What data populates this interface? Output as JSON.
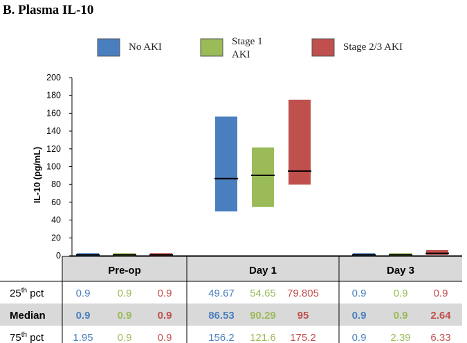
{
  "figure_title": "B. Plasma IL-10",
  "colors": {
    "No AKI": "#4a7fbf",
    "Stage 1 AKI": "#9bbb59",
    "Stage 2/3 AKI": "#c0504d",
    "table_header_bg": "#d9d9d9",
    "median_row_bg": "#d9d9d9"
  },
  "legend": [
    {
      "label_lines": [
        "No AKI"
      ],
      "color_key": "No AKI"
    },
    {
      "label_lines": [
        "Stage 1",
        "AKI"
      ],
      "color_key": "Stage 1 AKI"
    },
    {
      "label_lines": [
        "Stage 2/3 AKI"
      ],
      "color_key": "Stage 2/3 AKI"
    }
  ],
  "chart_data": {
    "type": "bar",
    "subtype": "floating-bar (25th–75th percentile with median line)",
    "ylabel": "IL-10 (pg/mL)",
    "ylim": [
      0,
      200
    ],
    "yticks": [
      0,
      20,
      40,
      60,
      80,
      100,
      120,
      140,
      160,
      180,
      200
    ],
    "categories": [
      "Pre-op",
      "Day 1",
      "Day 3"
    ],
    "series": [
      {
        "name": "No AKI",
        "p25": [
          0.9,
          49.67,
          0.9
        ],
        "median": [
          0.9,
          86.53,
          0.9
        ],
        "p75": [
          1.95,
          156.2,
          0.9
        ]
      },
      {
        "name": "Stage 1 AKI",
        "p25": [
          0.9,
          54.65,
          0.9
        ],
        "median": [
          0.9,
          90.29,
          0.9
        ],
        "p75": [
          0.9,
          121.6,
          2.39
        ]
      },
      {
        "name": "Stage 2/3 AKI",
        "p25": [
          0.9,
          79.805,
          0.9
        ],
        "median": [
          0.9,
          95,
          2.64
        ],
        "p75": [
          0.9,
          175.2,
          6.33
        ]
      }
    ],
    "grid": false,
    "legend_position": "top"
  },
  "table": {
    "rows": [
      {
        "label": "25th pct",
        "label_base": "25",
        "label_sup": "th",
        "label_rest": " pct",
        "bold": false,
        "cells": [
          "0.9",
          "0.9",
          "0.9",
          "49.67",
          "54.65",
          "79.805",
          "0.9",
          "0.9",
          "0.9"
        ]
      },
      {
        "label": "Median",
        "label_base": "Median",
        "label_sup": "",
        "label_rest": "",
        "bold": true,
        "cells": [
          "0.9",
          "0.9",
          "0.9",
          "86.53",
          "90.29",
          "95",
          "0.9",
          "0.9",
          "2.64"
        ]
      },
      {
        "label": "75th pct",
        "label_base": "75",
        "label_sup": "th",
        "label_rest": " pct",
        "bold": false,
        "cells": [
          "1.95",
          "0.9",
          "0.9",
          "156.2",
          "121.6",
          "175.2",
          "0.9",
          "2.39",
          "6.33"
        ]
      }
    ]
  }
}
